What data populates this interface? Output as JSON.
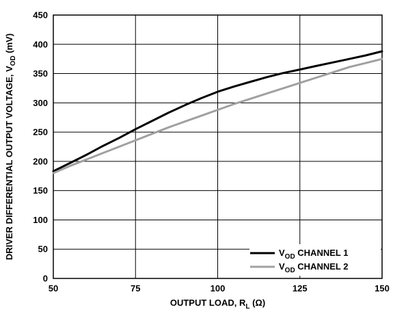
{
  "chart_data": {
    "type": "line",
    "xlabel": {
      "main": "OUTPUT LOAD, R",
      "sub": "L",
      "suffix": " (Ω)"
    },
    "ylabel": {
      "main": "DRIVER DIFFERENTIAL OUTPUT VOLTAGE, V",
      "sub": "OD",
      "suffix": " (mV)"
    },
    "xlim": [
      50,
      150
    ],
    "ylim": [
      0,
      450
    ],
    "xticks": [
      50,
      75,
      100,
      125,
      150
    ],
    "yticks": [
      0,
      50,
      100,
      150,
      200,
      250,
      300,
      350,
      400,
      450
    ],
    "grid": true,
    "legend_position": "bottom-right",
    "series": [
      {
        "name": {
          "main": "V",
          "sub": "OD",
          "suffix": " CHANNEL 1"
        },
        "color": "#000000",
        "x": [
          50,
          55,
          60,
          65,
          70,
          75,
          80,
          85,
          90,
          95,
          100,
          105,
          110,
          115,
          120,
          125,
          130,
          135,
          140,
          145,
          150
        ],
        "values": [
          183,
          197,
          211,
          226,
          240,
          255,
          269,
          283,
          296,
          308,
          319,
          328,
          336,
          344,
          351,
          357,
          363,
          369,
          375,
          381,
          388
        ]
      },
      {
        "name": {
          "main": "V",
          "sub": "OD",
          "suffix": " CHANNEL 2"
        },
        "color": "#a0a0a0",
        "x": [
          50,
          55,
          60,
          65,
          70,
          75,
          80,
          85,
          90,
          95,
          100,
          105,
          110,
          115,
          120,
          125,
          130,
          135,
          140,
          145,
          150
        ],
        "values": [
          180,
          192,
          203,
          214,
          225,
          236,
          247,
          258,
          268,
          278,
          288,
          298,
          307,
          316,
          325,
          334,
          343,
          352,
          361,
          368,
          375
        ]
      }
    ]
  }
}
